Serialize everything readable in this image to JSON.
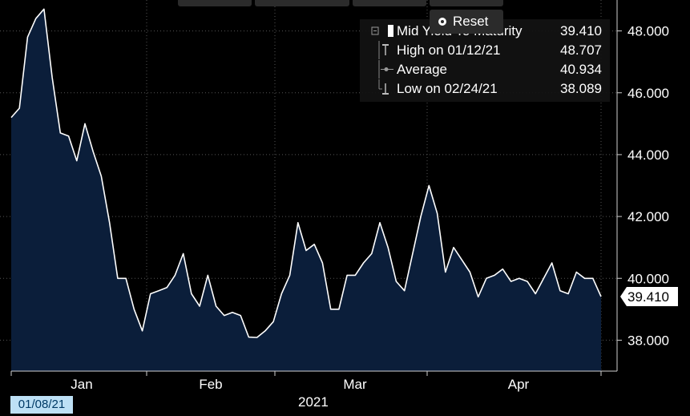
{
  "toolbar": {
    "reset_label": "Reset"
  },
  "legend": {
    "mid": {
      "label": "Mid Yield To Maturity",
      "value": "39.410"
    },
    "high": {
      "label": "High on 01/12/21",
      "value": "48.707"
    },
    "average": {
      "label": "Average",
      "value": "40.934"
    },
    "low": {
      "label": "Low on 02/24/21",
      "value": "38.089"
    }
  },
  "footer": {
    "date_badge": "01/08/21",
    "year": "2021"
  },
  "colors": {
    "area_fill": "#0b1e3a",
    "line": "#ffffff",
    "background": "#000000",
    "grid": "#555555",
    "badge": "#bde0f5"
  },
  "chart_data": {
    "type": "area",
    "year": "2021",
    "months": [
      {
        "label": "Jan",
        "value": 1
      },
      {
        "label": "Feb",
        "value": 2
      },
      {
        "label": "Mar",
        "value": 3
      },
      {
        "label": "Apr",
        "value": 4
      }
    ],
    "x_index_range": [
      0,
      80
    ],
    "ylim": [
      37.0,
      49.0
    ],
    "y_ticks": [
      "38.000",
      "40.000",
      "42.000",
      "44.000",
      "46.000",
      "48.000"
    ],
    "y_tick_values": [
      38,
      40,
      42,
      44,
      46,
      48
    ],
    "last_value_label": "39.410",
    "last_value": 39.41,
    "grid": true,
    "legend_position": "top-right",
    "series": [
      {
        "values": [
          45.2,
          45.5,
          47.8,
          48.4,
          48.707,
          46.5,
          44.7,
          44.6,
          43.8,
          45.0,
          44.1,
          43.3,
          41.8,
          40.0,
          40.0,
          39.0,
          38.3,
          39.5,
          39.6,
          39.7,
          40.1,
          40.8,
          39.5,
          39.1,
          40.1,
          39.1,
          38.8,
          38.9,
          38.8,
          38.1,
          38.089,
          38.3,
          38.6,
          39.5,
          40.1,
          41.8,
          40.9,
          41.1,
          40.5,
          39.0,
          39.0,
          40.1,
          40.1,
          40.5,
          40.8,
          41.8,
          41.0,
          39.9,
          39.6,
          40.8,
          42.0,
          43.0,
          42.1,
          40.2,
          41.0,
          40.6,
          40.2,
          39.4,
          40.0,
          40.1,
          40.3,
          39.9,
          40.0,
          39.9,
          39.5,
          40.0,
          40.5,
          39.6,
          39.5,
          40.2,
          40.0,
          40.0,
          39.41
        ]
      }
    ]
  }
}
